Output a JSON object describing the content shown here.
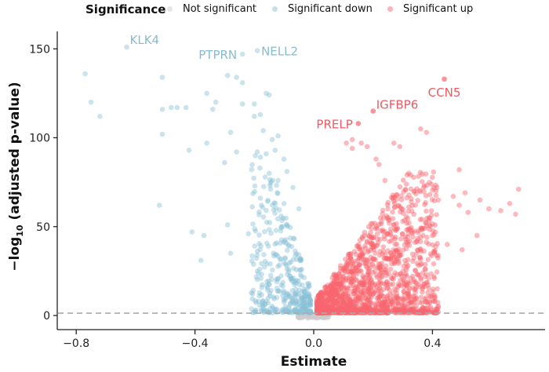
{
  "chart_data": {
    "type": "scatter",
    "subtype": "volcano",
    "title": "",
    "xlabel": "Estimate",
    "ylabel_prefix": "−log",
    "ylabel_sub": "10",
    "ylabel_suffix": " (adjusted p-value)",
    "xlim": [
      -0.84,
      0.78
    ],
    "ylim": [
      -8,
      160
    ],
    "xticks": [
      -0.8,
      -0.4,
      0.0,
      0.4
    ],
    "xtick_labels": [
      "−0.8",
      "−0.4",
      "0.0",
      "0.4"
    ],
    "yticks": [
      0,
      50,
      100,
      150
    ],
    "ytick_labels": [
      "0",
      "50",
      "100",
      "150"
    ],
    "threshold_line": {
      "y": 1.3,
      "style": "dashed",
      "color": "#aaaaaa"
    },
    "grid": false,
    "legend": {
      "title": "Significance",
      "placement": "top",
      "entries": [
        {
          "name": "Not significant",
          "color": "#cccccc"
        },
        {
          "name": "Significant down",
          "color": "#89c2d6"
        },
        {
          "name": "Significant up",
          "color": "#f8676f"
        }
      ]
    },
    "labeled_genes": [
      {
        "gene": "KLK4",
        "x": -0.63,
        "y": 151,
        "group": "Significant down"
      },
      {
        "gene": "PTPRN",
        "x": -0.24,
        "y": 147,
        "group": "Significant down"
      },
      {
        "gene": "NELL2",
        "x": -0.19,
        "y": 149,
        "group": "Significant down"
      },
      {
        "gene": "PRELP",
        "x": 0.15,
        "y": 108,
        "group": "Significant up"
      },
      {
        "gene": "IGFBP6",
        "x": 0.2,
        "y": 115,
        "group": "Significant up"
      },
      {
        "gene": "CCN5",
        "x": 0.44,
        "y": 133,
        "group": "Significant up"
      }
    ],
    "series": [
      {
        "name": "Significant down",
        "color": "#89c2d6",
        "points": [
          [
            -0.77,
            136
          ],
          [
            -0.75,
            120
          ],
          [
            -0.72,
            112
          ],
          [
            -0.51,
            134
          ],
          [
            -0.51,
            116
          ],
          [
            -0.48,
            117
          ],
          [
            -0.46,
            117
          ],
          [
            -0.43,
            117
          ],
          [
            -0.51,
            102
          ],
          [
            -0.42,
            93
          ],
          [
            -0.52,
            62
          ],
          [
            -0.36,
            97
          ],
          [
            -0.36,
            125
          ],
          [
            -0.29,
            135
          ],
          [
            -0.26,
            134
          ],
          [
            -0.24,
            131
          ],
          [
            -0.33,
            120
          ],
          [
            -0.34,
            116
          ],
          [
            -0.24,
            119
          ],
          [
            -0.2,
            119
          ],
          [
            -0.18,
            113
          ],
          [
            -0.16,
            125
          ],
          [
            -0.15,
            124
          ],
          [
            -0.2,
            112
          ],
          [
            -0.17,
            104
          ],
          [
            -0.14,
            99
          ],
          [
            -0.12,
            101
          ],
          [
            -0.28,
            103
          ],
          [
            -0.3,
            86
          ],
          [
            -0.26,
            92
          ],
          [
            -0.19,
            92
          ],
          [
            -0.16,
            91
          ],
          [
            -0.13,
            93
          ],
          [
            -0.1,
            88
          ],
          [
            -0.41,
            47
          ],
          [
            -0.37,
            45
          ],
          [
            -0.38,
            31
          ],
          [
            -0.28,
            35
          ],
          [
            -0.29,
            51
          ],
          [
            -0.22,
            46
          ],
          [
            -0.18,
            66
          ],
          [
            -0.1,
            63
          ],
          [
            -0.05,
            60
          ],
          [
            -0.07,
            72
          ],
          [
            -0.12,
            76
          ],
          [
            -0.15,
            80
          ],
          [
            -0.09,
            81
          ]
        ],
        "bulk": {
          "count": 380,
          "x_range": [
            -0.18,
            -0.01
          ],
          "y_max": 90,
          "seed": 11
        }
      },
      {
        "name": "Significant up",
        "color": "#f8676f",
        "points": [
          [
            0.44,
            133
          ],
          [
            0.36,
            105
          ],
          [
            0.38,
            103
          ],
          [
            0.2,
            115
          ],
          [
            0.15,
            108
          ],
          [
            0.16,
            97
          ],
          [
            0.13,
            94
          ],
          [
            0.11,
            97
          ],
          [
            0.13,
            99
          ],
          [
            0.18,
            95
          ],
          [
            0.21,
            88
          ],
          [
            0.22,
            85
          ],
          [
            0.27,
            97
          ],
          [
            0.29,
            95
          ],
          [
            0.32,
            80
          ],
          [
            0.24,
            76
          ],
          [
            0.28,
            68
          ],
          [
            0.34,
            70
          ],
          [
            0.42,
            65
          ],
          [
            0.49,
            82
          ],
          [
            0.56,
            65
          ],
          [
            0.59,
            60
          ],
          [
            0.63,
            59
          ],
          [
            0.66,
            63
          ],
          [
            0.69,
            71
          ],
          [
            0.68,
            57
          ],
          [
            0.47,
            67
          ],
          [
            0.51,
            69
          ],
          [
            0.49,
            62
          ],
          [
            0.52,
            58
          ],
          [
            0.55,
            45
          ],
          [
            0.4,
            45
          ],
          [
            0.45,
            40
          ],
          [
            0.5,
            37
          ],
          [
            0.36,
            44
          ],
          [
            0.3,
            53
          ]
        ],
        "bulk": {
          "count": 1600,
          "x_range": [
            0.01,
            0.42
          ],
          "y_max": 80,
          "seed": 23
        }
      },
      {
        "name": "Not significant",
        "color": "#cccccc",
        "bulk": {
          "count": 120,
          "x_range": [
            -0.05,
            0.05
          ],
          "y_max": 1.3,
          "seed": 37
        }
      }
    ]
  }
}
